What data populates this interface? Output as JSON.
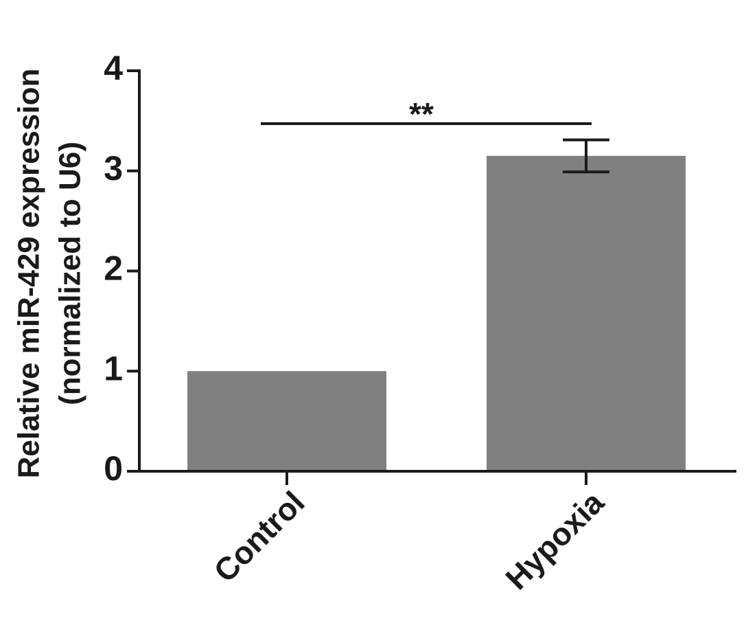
{
  "chart_data": {
    "type": "bar",
    "y_label": [
      "Relative miR-429 expression",
      "(normalized to U6)"
    ],
    "categories": [
      "Control",
      "Hypoxia"
    ],
    "values": [
      1.0,
      3.15
    ],
    "errors": [
      null,
      0.16
    ],
    "color": "#808080",
    "ylim": [
      0,
      4
    ],
    "yticks": [
      0,
      1,
      2,
      3,
      4
    ],
    "annotation": "**"
  }
}
